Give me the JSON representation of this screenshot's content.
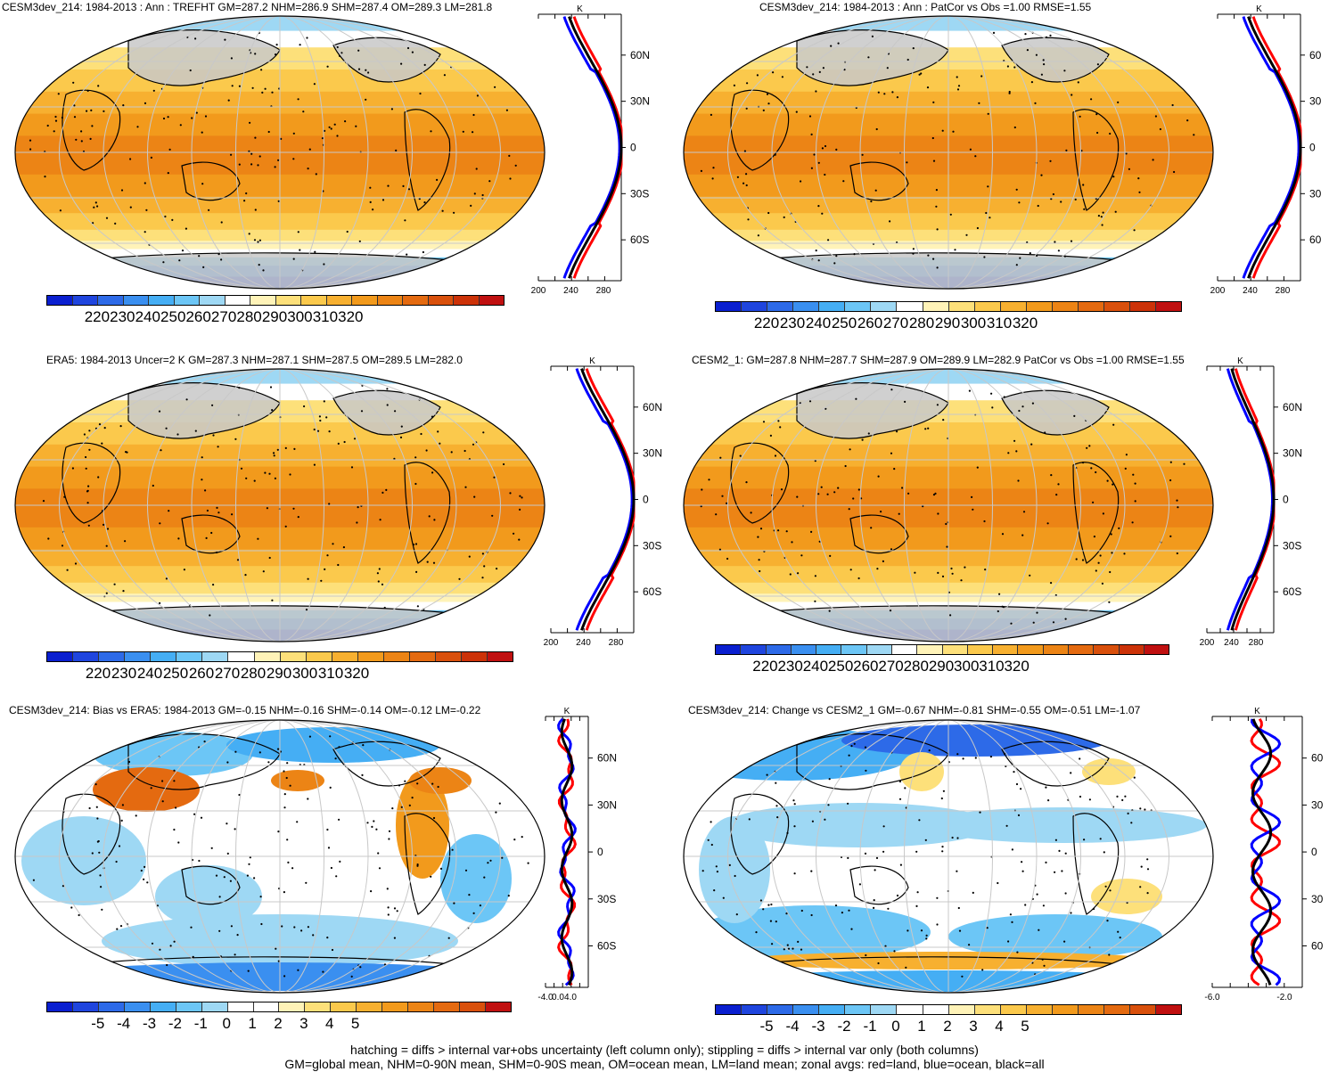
{
  "panels": [
    {
      "id": "model",
      "title": "CESM3dev_214: 1984-2013 : Ann : TREFHT GM=287.2 NHM=286.9 SHM=287.4 OM=289.3 LM=281.8",
      "kind": "abs",
      "colorbar_labels": [
        "220",
        "230",
        "240",
        "250",
        "260",
        "270",
        "280",
        "290",
        "300",
        "310",
        "320"
      ],
      "zonal": {
        "unit": "K",
        "lat_labels": [
          "60N",
          "30N",
          "0",
          "30S",
          "60S"
        ],
        "x_labels": [
          "200",
          "240",
          "280"
        ]
      }
    },
    {
      "id": "model-patcor",
      "title": "CESM3dev_214: 1984-2013 : Ann : PatCor vs Obs =1.00 RMSE=1.55",
      "kind": "abs",
      "colorbar_labels": [
        "220",
        "230",
        "240",
        "250",
        "260",
        "270",
        "280",
        "290",
        "300",
        "310",
        "320"
      ],
      "zonal": {
        "unit": "K",
        "lat_labels": [
          "60",
          "30",
          "0",
          "30",
          "60"
        ],
        "x_labels": [
          "200",
          "240",
          "280"
        ]
      }
    },
    {
      "id": "obs",
      "title": "ERA5: 1984-2013 Uncer=2 K GM=287.3 NHM=287.1 SHM=287.5 OM=289.5 LM=282.0",
      "kind": "abs",
      "colorbar_labels": [
        "220",
        "230",
        "240",
        "250",
        "260",
        "270",
        "280",
        "290",
        "300",
        "310",
        "320"
      ],
      "zonal": {
        "unit": "K",
        "lat_labels": [
          "60N",
          "30N",
          "0",
          "30S",
          "60S"
        ],
        "x_labels": [
          "200",
          "240",
          "280"
        ]
      }
    },
    {
      "id": "ref-model",
      "title": "CESM2_1: GM=287.8 NHM=287.7 SHM=287.9 OM=289.9 LM=282.9 PatCor vs Obs =1.00 RMSE=1.55",
      "kind": "abs",
      "colorbar_labels": [
        "220",
        "230",
        "240",
        "250",
        "260",
        "270",
        "280",
        "290",
        "300",
        "310",
        "320"
      ],
      "zonal": {
        "unit": "K",
        "lat_labels": [
          "60N",
          "30N",
          "0",
          "30S",
          "60S"
        ],
        "x_labels": [
          "200",
          "240",
          "280"
        ]
      }
    },
    {
      "id": "bias",
      "title": "CESM3dev_214: Bias vs ERA5: 1984-2013 GM=-0.15 NHM=-0.16 SHM=-0.14 OM=-0.12 LM=-0.22",
      "kind": "diff",
      "colorbar_labels": [
        "-5",
        "-4",
        "-3",
        "-2",
        "-1",
        "0",
        "1",
        "2",
        "3",
        "4",
        "5"
      ],
      "zonal": {
        "unit": "K",
        "lat_labels": [
          "60N",
          "30N",
          "0",
          "30S",
          "60S"
        ],
        "x_labels": [
          "-4.0",
          "0.0",
          "4.0"
        ]
      }
    },
    {
      "id": "change",
      "title": "CESM3dev_214: Change vs CESM2_1 GM=-0.67 NHM=-0.81 SHM=-0.55 OM=-0.51 LM=-1.07",
      "kind": "diff",
      "colorbar_labels": [
        "-5",
        "-4",
        "-3",
        "-2",
        "-1",
        "0",
        "1",
        "2",
        "3",
        "4",
        "5"
      ],
      "zonal": {
        "unit": "K",
        "lat_labels": [
          "60",
          "30",
          "0",
          "30",
          "60"
        ],
        "x_labels": [
          "-6.0",
          "-2.0"
        ]
      }
    }
  ],
  "colors": {
    "abs": [
      "#0a1fd0",
      "#1f45de",
      "#2d6ae8",
      "#3a8ff0",
      "#45aef4",
      "#6cc6f6",
      "#9ed8f4",
      "#ffffff",
      "#fff3b8",
      "#fde07a",
      "#fbc94c",
      "#f7b030",
      "#f29a1c",
      "#ec8415",
      "#e46a10",
      "#d9500c",
      "#cc3208",
      "#c01010"
    ],
    "diff": [
      "#0a1fd0",
      "#1f45de",
      "#2d6ae8",
      "#3a8ff0",
      "#45aef4",
      "#6cc6f6",
      "#9ed8f4",
      "#ffffff",
      "#ffffff",
      "#fff3b8",
      "#fde07a",
      "#fbc94c",
      "#f7b030",
      "#f29a1c",
      "#ec8415",
      "#e46a10",
      "#d9500c",
      "#c01010"
    ],
    "land": "#c8c8c8",
    "zonal_land": "#ff0000",
    "zonal_ocean": "#0000ff",
    "zonal_all": "#000000"
  },
  "footnote": {
    "line1": "hatching = diffs > internal var+obs uncertainty (left column only); stippling = diffs > internal var only (both columns)",
    "line2": "GM=global mean, NHM=0-90N mean, SHM=0-90S mean, OM=ocean mean, LM=land mean; zonal avgs: red=land, blue=ocean, black=all"
  }
}
